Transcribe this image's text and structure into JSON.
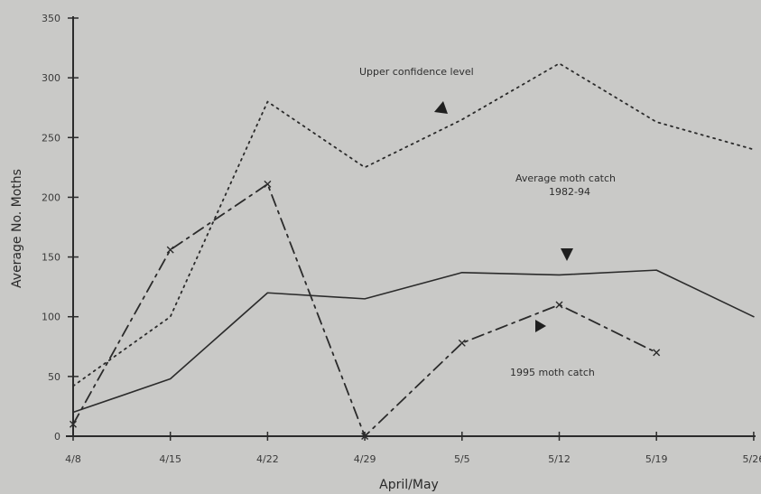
{
  "chart_data": {
    "type": "line",
    "xlabel": "April/May",
    "ylabel": "Average No. Moths",
    "ylim": [
      0,
      350
    ],
    "yticks": [
      0,
      50,
      100,
      150,
      200,
      250,
      300,
      350
    ],
    "categories": [
      "4/8",
      "4/15",
      "4/22",
      "4/29",
      "5/5",
      "5/12",
      "5/19",
      "5/26"
    ],
    "series": [
      {
        "id": "upper",
        "values": [
          42,
          100,
          280,
          225,
          265,
          312,
          263,
          240
        ],
        "style": "dotted",
        "marker": "none"
      },
      {
        "id": "average",
        "values": [
          20,
          48,
          120,
          115,
          137,
          135,
          139,
          100
        ],
        "style": "solid",
        "marker": "none"
      },
      {
        "id": "y1995",
        "values": [
          10,
          156,
          211,
          0,
          78,
          110,
          70,
          null
        ],
        "style": "dashdot",
        "marker": "x"
      }
    ],
    "annotations": [
      {
        "text": "Upper confidence level",
        "series": "upper"
      },
      {
        "text": "Average moth catch",
        "text2": "1982-94",
        "series": "average"
      },
      {
        "text": "1995 moth catch",
        "series": "y1995"
      }
    ],
    "colors": {
      "line": "#2b2b2b",
      "axis": "#2b2b2b",
      "background": "#c9c9c7"
    }
  }
}
